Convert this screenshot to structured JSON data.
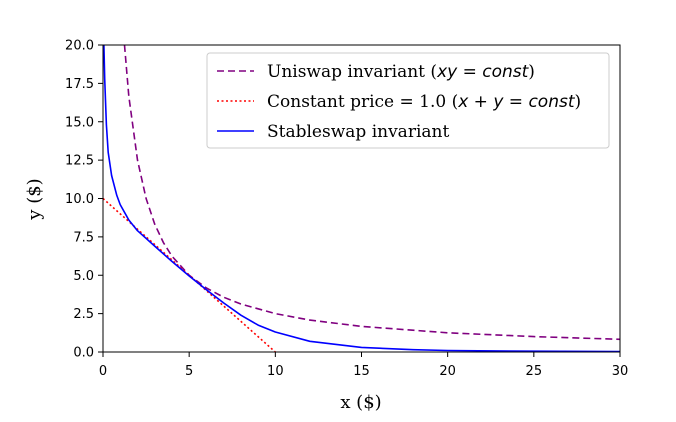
{
  "chart_data": {
    "type": "line",
    "xlabel": "x ($)",
    "ylabel": "y ($)",
    "xlim": [
      0,
      30
    ],
    "ylim": [
      0,
      20
    ],
    "x_ticks": [
      "0",
      "5",
      "10",
      "15",
      "20",
      "25",
      "30"
    ],
    "y_ticks": [
      "0.0",
      "2.5",
      "5.0",
      "7.5",
      "10.0",
      "12.5",
      "15.0",
      "17.5",
      "20.0"
    ],
    "grid": false,
    "legend_position": "top-right",
    "series": [
      {
        "name": "Uniswap invariant (xy = const)",
        "legend_text": "Uniswap invariant (",
        "legend_math": "xy = const",
        "legend_suffix": ")",
        "color": "#800080",
        "style": "dashed",
        "x": [
          1.25,
          1.5,
          2,
          2.5,
          3,
          3.5,
          4,
          5,
          6,
          7,
          8,
          10,
          12,
          15,
          20,
          25,
          30
        ],
        "y": [
          20.0,
          16.67,
          12.5,
          10.0,
          8.33,
          7.14,
          6.25,
          5.0,
          4.17,
          3.57,
          3.13,
          2.5,
          2.08,
          1.67,
          1.25,
          1.0,
          0.83
        ]
      },
      {
        "name": "Constant price = 1.0 (x + y = const)",
        "legend_text": "Constant price = 1.0 (",
        "legend_math": "x + y = const",
        "legend_suffix": ")",
        "color": "#ff0000",
        "style": "dotted",
        "x": [
          0,
          10
        ],
        "y": [
          10,
          0
        ]
      },
      {
        "name": "Stableswap invariant",
        "legend_text": "Stableswap invariant",
        "legend_math": "",
        "legend_suffix": "",
        "color": "#0000ff",
        "style": "solid",
        "x": [
          0.05,
          0.1,
          0.2,
          0.3,
          0.5,
          0.8,
          1,
          1.5,
          2,
          3,
          4,
          5,
          6,
          7,
          8,
          9,
          10,
          12,
          15,
          18,
          20,
          25,
          30
        ],
        "y": [
          20.0,
          17.8,
          14.8,
          13.0,
          11.5,
          10.2,
          9.6,
          8.6,
          7.9,
          6.9,
          5.9,
          4.95,
          4.05,
          3.2,
          2.4,
          1.75,
          1.3,
          0.7,
          0.3,
          0.15,
          0.1,
          0.05,
          0.03
        ]
      }
    ]
  }
}
